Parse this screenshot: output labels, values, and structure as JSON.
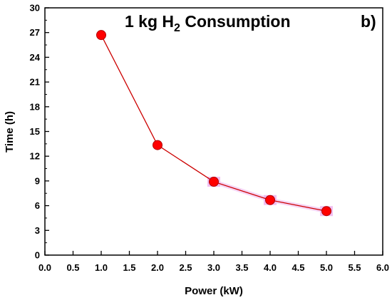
{
  "chart_data": {
    "type": "line",
    "title_main": "1 kg H",
    "title_subscript": "2",
    "title_rest": " Consumption",
    "panel_label": "b)",
    "xlabel": "Power (kW)",
    "ylabel": "Time (h)",
    "xlim": [
      0,
      6
    ],
    "ylim": [
      0,
      30
    ],
    "xticks": [
      "0.0",
      "0.5",
      "1.0",
      "1.5",
      "2.0",
      "2.5",
      "3.0",
      "3.5",
      "4.0",
      "4.5",
      "5.0",
      "5.5",
      "6.0"
    ],
    "yticks": [
      "0",
      "3",
      "6",
      "9",
      "12",
      "15",
      "18",
      "21",
      "24",
      "27",
      "30"
    ],
    "grid": false,
    "x": [
      1.0,
      2.0,
      3.0,
      4.0,
      5.0
    ],
    "y": [
      26.7,
      13.35,
      8.9,
      6.68,
      5.34
    ],
    "line_color": "#cc0000",
    "marker_color": "#ff0000",
    "marker_outline_color": "#b00000",
    "highlight_color": "#f0b8f0"
  }
}
